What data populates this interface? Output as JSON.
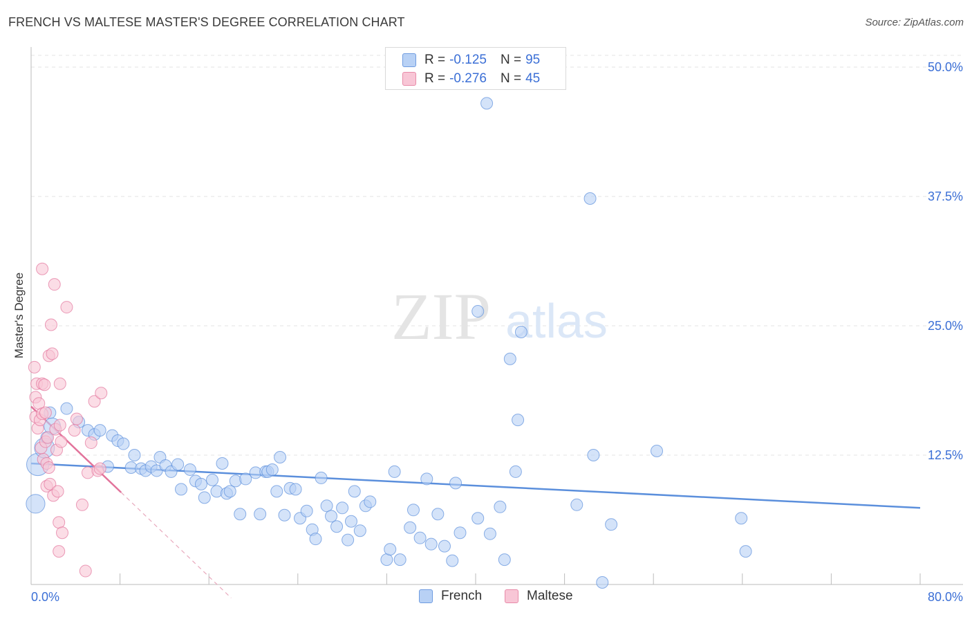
{
  "title": "FRENCH VS MALTESE MASTER'S DEGREE CORRELATION CHART",
  "source": "Source: ZipAtlas.com",
  "watermark": {
    "zip": "ZIP",
    "atlas": "atlas"
  },
  "legend": {
    "rows": [
      {
        "r_label": "R =",
        "r_value": "-0.125",
        "n_label": "N =",
        "n_value": "95",
        "fill": "#b8d1f5",
        "stroke": "#6e9be0"
      },
      {
        "r_label": "R =",
        "r_value": "-0.276",
        "n_label": "N =",
        "n_value": "45",
        "fill": "#f8c6d6",
        "stroke": "#e88aa8"
      }
    ]
  },
  "bottom_legend": [
    {
      "label": "French",
      "fill": "#b8d1f5",
      "stroke": "#6e9be0"
    },
    {
      "label": "Maltese",
      "fill": "#f8c6d6",
      "stroke": "#e88aa8"
    }
  ],
  "chart_data": {
    "type": "scatter",
    "title": "FRENCH VS MALTESE MASTER'S DEGREE CORRELATION CHART",
    "xlabel": "",
    "ylabel": "Master's Degree",
    "xlim": [
      0,
      80
    ],
    "ylim": [
      0,
      50
    ],
    "x_tick_labels": [
      "0.0%",
      "80.0%"
    ],
    "y_ticks": [
      {
        "value": 12.5,
        "label": "12.5%"
      },
      {
        "value": 25,
        "label": "25.0%"
      },
      {
        "value": 37.5,
        "label": "37.5%"
      },
      {
        "value": 50,
        "label": "50.0%"
      }
    ],
    "grid": true,
    "series": [
      {
        "name": "French",
        "color": "#5b8fdc",
        "fill": "#b8d1f5",
        "trend": {
          "x0": 0,
          "y0": 11.7,
          "x1": 80,
          "y1": 7.4
        },
        "points": [
          [
            0.4,
            7.8,
            1.6
          ],
          [
            0.6,
            11.6,
            1.9
          ],
          [
            1.2,
            13.2,
            1.7
          ],
          [
            1.4,
            14.2,
            1
          ],
          [
            1.7,
            16.6,
            1
          ],
          [
            1.9,
            15.3,
            1.4
          ],
          [
            3.2,
            17.0,
            1
          ],
          [
            4.3,
            15.7,
            1
          ],
          [
            5.1,
            14.9,
            1
          ],
          [
            5.7,
            14.5,
            1
          ],
          [
            6.2,
            14.9,
            1
          ],
          [
            6.9,
            11.4,
            1
          ],
          [
            7.3,
            14.4,
            1
          ],
          [
            7.8,
            13.9,
            1
          ],
          [
            8.3,
            13.6,
            1
          ],
          [
            9.0,
            11.3,
            1
          ],
          [
            9.3,
            12.5,
            1
          ],
          [
            9.9,
            11.2,
            1
          ],
          [
            10.3,
            11.0,
            1
          ],
          [
            10.8,
            11.4,
            1
          ],
          [
            11.3,
            11.0,
            1
          ],
          [
            11.6,
            12.3,
            1
          ],
          [
            12.1,
            11.5,
            1
          ],
          [
            12.6,
            10.9,
            1
          ],
          [
            13.2,
            11.6,
            1
          ],
          [
            13.5,
            9.2,
            1
          ],
          [
            14.3,
            11.1,
            1
          ],
          [
            14.8,
            10.0,
            1
          ],
          [
            15.3,
            9.7,
            1
          ],
          [
            15.6,
            8.4,
            1
          ],
          [
            16.3,
            10.1,
            1
          ],
          [
            16.7,
            9.0,
            1
          ],
          [
            17.2,
            11.7,
            1
          ],
          [
            17.6,
            8.8,
            1
          ],
          [
            17.9,
            9.0,
            1
          ],
          [
            18.4,
            10.0,
            1
          ],
          [
            18.8,
            6.8,
            1
          ],
          [
            19.3,
            10.2,
            1
          ],
          [
            20.2,
            10.8,
            1
          ],
          [
            20.6,
            6.8,
            1
          ],
          [
            21.1,
            10.9,
            1
          ],
          [
            21.3,
            10.9,
            1
          ],
          [
            21.7,
            11.1,
            1
          ],
          [
            22.1,
            9.0,
            1
          ],
          [
            22.4,
            12.3,
            1
          ],
          [
            22.8,
            6.7,
            1
          ],
          [
            23.3,
            9.3,
            1
          ],
          [
            23.8,
            9.2,
            1
          ],
          [
            24.2,
            6.4,
            1
          ],
          [
            24.8,
            7.1,
            1
          ],
          [
            25.3,
            5.3,
            1
          ],
          [
            25.6,
            4.4,
            1
          ],
          [
            26.1,
            10.3,
            1
          ],
          [
            26.6,
            7.6,
            1
          ],
          [
            27.0,
            6.6,
            1
          ],
          [
            27.5,
            5.6,
            1
          ],
          [
            28.0,
            7.4,
            1
          ],
          [
            28.5,
            4.3,
            1
          ],
          [
            28.8,
            6.1,
            1
          ],
          [
            29.1,
            9.0,
            1
          ],
          [
            29.6,
            5.2,
            1
          ],
          [
            30.1,
            7.6,
            1
          ],
          [
            30.5,
            8.0,
            1
          ],
          [
            32.0,
            2.4,
            1
          ],
          [
            32.3,
            3.4,
            1
          ],
          [
            32.7,
            10.9,
            1
          ],
          [
            33.2,
            2.4,
            1
          ],
          [
            34.1,
            5.5,
            1
          ],
          [
            34.4,
            7.2,
            1
          ],
          [
            35.0,
            4.5,
            1
          ],
          [
            35.6,
            10.2,
            1
          ],
          [
            36.0,
            3.9,
            1
          ],
          [
            36.6,
            6.8,
            1
          ],
          [
            37.2,
            3.7,
            1
          ],
          [
            37.9,
            2.3,
            1
          ],
          [
            38.2,
            9.8,
            1
          ],
          [
            38.6,
            5.0,
            1
          ],
          [
            40.2,
            6.4,
            1
          ],
          [
            40.2,
            26.4,
            1
          ],
          [
            41.0,
            46.5,
            1
          ],
          [
            41.3,
            4.9,
            1
          ],
          [
            42.2,
            7.5,
            1
          ],
          [
            42.6,
            2.4,
            1
          ],
          [
            43.1,
            21.8,
            1
          ],
          [
            43.6,
            10.9,
            1
          ],
          [
            43.8,
            15.9,
            1
          ],
          [
            44.1,
            24.4,
            1
          ],
          [
            49.1,
            7.7,
            1
          ],
          [
            50.3,
            37.3,
            1
          ],
          [
            50.6,
            12.5,
            1
          ],
          [
            51.4,
            0.2,
            1
          ],
          [
            52.2,
            5.8,
            1
          ],
          [
            56.3,
            12.9,
            1
          ],
          [
            63.9,
            6.4,
            1
          ],
          [
            64.3,
            3.2,
            1
          ]
        ]
      },
      {
        "name": "Maltese",
        "color": "#e2739b",
        "fill": "#f8c6d6",
        "trend": {
          "x0": 0,
          "y0": 17.2,
          "x1": 8.1,
          "y1": 8.9
        },
        "trend_dashed": {
          "x0": 8.1,
          "y0": 8.9,
          "x1": 18,
          "y1": -1.3
        },
        "points": [
          [
            0.3,
            21.0,
            1
          ],
          [
            0.4,
            18.1,
            1
          ],
          [
            0.4,
            16.2,
            1
          ],
          [
            0.5,
            19.4,
            1
          ],
          [
            0.6,
            15.1,
            1
          ],
          [
            0.7,
            17.5,
            1
          ],
          [
            0.8,
            15.9,
            1
          ],
          [
            0.9,
            13.2,
            1
          ],
          [
            1.0,
            30.5,
            1
          ],
          [
            1.0,
            19.4,
            1
          ],
          [
            1.0,
            16.5,
            1
          ],
          [
            1.1,
            12.1,
            1
          ],
          [
            1.2,
            19.3,
            1
          ],
          [
            1.3,
            16.6,
            1
          ],
          [
            1.3,
            13.8,
            1
          ],
          [
            1.4,
            9.5,
            1
          ],
          [
            1.4,
            11.7,
            1
          ],
          [
            1.5,
            14.2,
            1
          ],
          [
            1.6,
            11.3,
            1
          ],
          [
            1.6,
            22.1,
            1
          ],
          [
            1.7,
            9.7,
            1
          ],
          [
            1.8,
            25.1,
            1
          ],
          [
            1.9,
            22.3,
            1
          ],
          [
            2.0,
            8.6,
            1
          ],
          [
            2.1,
            29.0,
            1
          ],
          [
            2.2,
            15.0,
            1
          ],
          [
            2.3,
            13.0,
            1
          ],
          [
            2.4,
            9.0,
            1
          ],
          [
            2.5,
            6.0,
            1
          ],
          [
            2.5,
            3.2,
            1
          ],
          [
            2.6,
            15.4,
            1
          ],
          [
            2.6,
            19.4,
            1
          ],
          [
            2.7,
            13.8,
            1
          ],
          [
            2.8,
            5.0,
            1
          ],
          [
            3.2,
            26.8,
            1
          ],
          [
            3.9,
            14.9,
            1
          ],
          [
            4.1,
            16.0,
            1
          ],
          [
            4.6,
            7.7,
            1
          ],
          [
            4.9,
            1.3,
            1
          ],
          [
            5.1,
            10.8,
            1
          ],
          [
            5.4,
            13.7,
            1
          ],
          [
            5.7,
            17.7,
            1
          ],
          [
            6.0,
            11.0,
            1
          ],
          [
            6.2,
            11.2,
            1
          ],
          [
            6.3,
            18.5,
            1
          ]
        ]
      }
    ]
  }
}
